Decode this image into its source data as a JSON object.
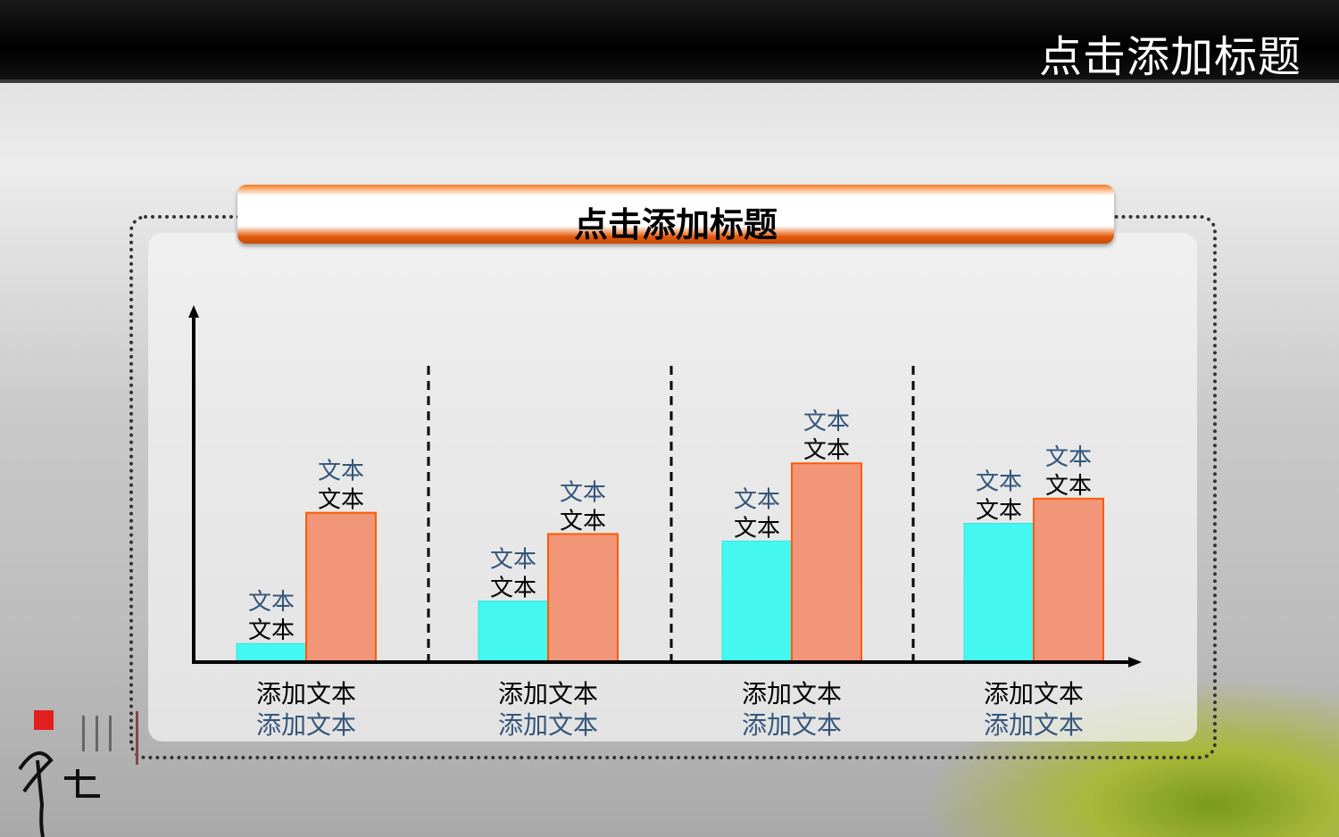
{
  "header": {
    "title": "点击添加标题"
  },
  "banner": {
    "title": "点击添加标题"
  },
  "colors": {
    "series1": "#44f7f0",
    "series2": "#f2967a",
    "series2_border": "#ff5a00",
    "header_bg": "#000000",
    "banner_orange": "#f67b1f"
  },
  "chart_data": {
    "type": "bar",
    "categories": [
      "添加文本",
      "添加文本",
      "添加文本",
      "添加文本"
    ],
    "category_sublabels": [
      "添加文本",
      "添加文本",
      "添加文本",
      "添加文本"
    ],
    "series": [
      {
        "values": [
          0.5,
          1.7,
          3.4,
          3.9
        ],
        "labels": [
          "文本",
          "文本",
          "文本",
          "文本"
        ],
        "sublabels": [
          "文本",
          "文本",
          "文本",
          "文本"
        ],
        "color": "#44f7f0"
      },
      {
        "values": [
          4.2,
          3.6,
          5.6,
          4.6
        ],
        "labels": [
          "文本",
          "文本",
          "文本",
          "文本"
        ],
        "sublabels": [
          "文本",
          "文本",
          "文本",
          "文本"
        ],
        "color": "#f2967a"
      }
    ],
    "ylim": [
      0,
      10
    ],
    "grid": false,
    "group_dividers": "dashed"
  }
}
